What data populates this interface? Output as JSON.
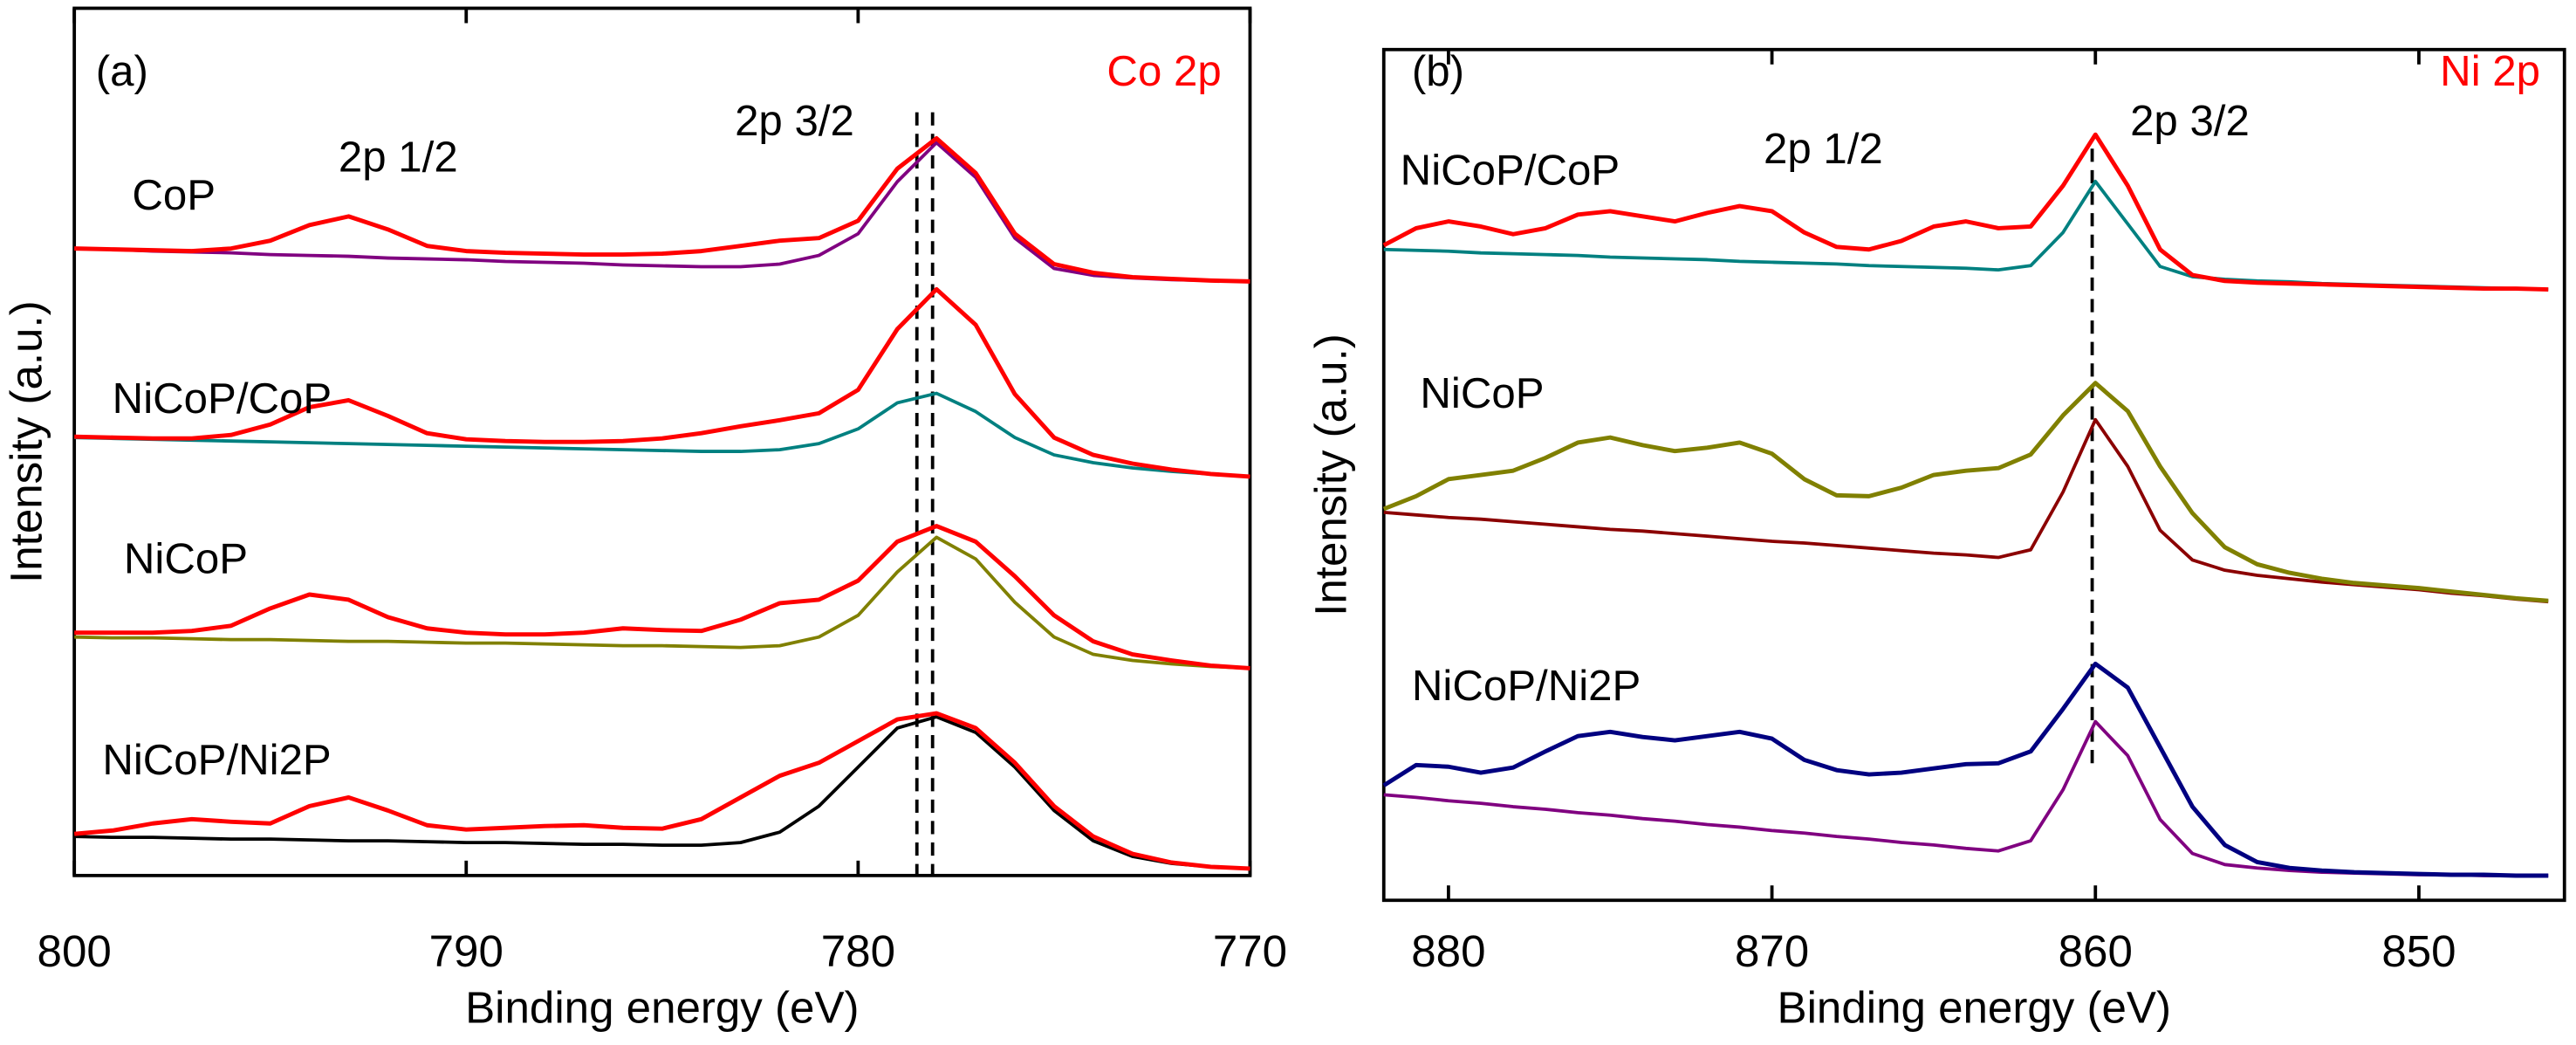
{
  "chart_data": [
    {
      "type": "line",
      "panel_label": "(a)",
      "title": "Co 2p",
      "title_color": "#ff0000",
      "annotations": [
        "2p 1/2",
        "2p 3/2"
      ],
      "x_label": "Binding energy (eV)",
      "y_label": "Intensity (a.u.)",
      "x": [
        800,
        799,
        798,
        797,
        796,
        795,
        794,
        793,
        792,
        791,
        790,
        789,
        788,
        787,
        786,
        785,
        784,
        783,
        782,
        781,
        780,
        779,
        778,
        777,
        776,
        775,
        774,
        773,
        772,
        771,
        770
      ],
      "xlim": [
        800,
        770
      ],
      "xticks": [
        800,
        790,
        780,
        770
      ],
      "ylim": [
        0,
        100
      ],
      "reference_lines": [
        778.1,
        778.5
      ],
      "series": [
        {
          "color": "#800080",
          "values": [
            72.3,
            72.2,
            72.0,
            71.9,
            71.8,
            71.6,
            71.5,
            71.4,
            71.2,
            71.1,
            71.0,
            70.8,
            70.7,
            70.6,
            70.4,
            70.3,
            70.2,
            70.2,
            70.5,
            71.5,
            74.0,
            80.0,
            84.5,
            80.5,
            73.5,
            70.0,
            69.2,
            68.9,
            68.7,
            68.6,
            68.5
          ]
        },
        {
          "name": "CoP",
          "color": "#ff0000",
          "values": [
            72.3,
            72.2,
            72.1,
            72.0,
            72.3,
            73.2,
            75.0,
            76.0,
            74.5,
            72.6,
            72.0,
            71.8,
            71.7,
            71.6,
            71.6,
            71.7,
            72.0,
            72.6,
            73.2,
            73.5,
            75.5,
            81.5,
            85.0,
            81.0,
            74.0,
            70.5,
            69.5,
            69.0,
            68.8,
            68.6,
            68.5
          ]
        },
        {
          "color": "#008080",
          "values": [
            50.5,
            50.4,
            50.3,
            50.2,
            50.1,
            50.0,
            49.9,
            49.8,
            49.7,
            49.6,
            49.5,
            49.4,
            49.3,
            49.2,
            49.1,
            49.0,
            48.9,
            48.9,
            49.1,
            49.8,
            51.5,
            54.5,
            55.6,
            53.5,
            50.5,
            48.5,
            47.6,
            47.0,
            46.6,
            46.3,
            46.0
          ]
        },
        {
          "name": "NiCoP/CoP",
          "color": "#ff0000",
          "values": [
            50.6,
            50.5,
            50.4,
            50.4,
            50.8,
            52.0,
            54.0,
            54.8,
            53.0,
            51.0,
            50.3,
            50.1,
            50.0,
            50.0,
            50.1,
            50.4,
            51.0,
            51.8,
            52.5,
            53.3,
            56.0,
            63.0,
            67.6,
            63.5,
            55.5,
            50.5,
            48.5,
            47.5,
            46.8,
            46.3,
            46.0
          ]
        },
        {
          "color": "#808000",
          "values": [
            27.5,
            27.4,
            27.4,
            27.3,
            27.2,
            27.2,
            27.1,
            27.0,
            27.0,
            26.9,
            26.8,
            26.8,
            26.7,
            26.6,
            26.5,
            26.5,
            26.4,
            26.3,
            26.5,
            27.5,
            30.0,
            35.0,
            39.0,
            36.5,
            31.5,
            27.5,
            25.5,
            24.8,
            24.4,
            24.1,
            23.9
          ]
        },
        {
          "name": "NiCoP",
          "color": "#ff0000",
          "values": [
            28.0,
            28.0,
            28.0,
            28.2,
            28.8,
            30.8,
            32.4,
            31.8,
            29.8,
            28.5,
            28.0,
            27.8,
            27.8,
            28.0,
            28.5,
            28.3,
            28.2,
            29.5,
            31.4,
            31.8,
            34.0,
            38.5,
            40.3,
            38.5,
            34.5,
            30.0,
            27.0,
            25.5,
            24.8,
            24.2,
            23.9
          ]
        },
        {
          "color": "#000000",
          "values": [
            4.5,
            4.4,
            4.4,
            4.3,
            4.2,
            4.2,
            4.1,
            4.0,
            4.0,
            3.9,
            3.8,
            3.8,
            3.7,
            3.6,
            3.6,
            3.5,
            3.5,
            3.8,
            5.0,
            8.0,
            12.5,
            17.0,
            18.3,
            16.5,
            12.5,
            7.5,
            4.0,
            2.2,
            1.4,
            1.0,
            0.8
          ]
        },
        {
          "name": "NiCoP/Ni2P",
          "color": "#ff0000",
          "values": [
            4.8,
            5.2,
            6.0,
            6.5,
            6.2,
            6.0,
            8.0,
            9.0,
            7.5,
            5.8,
            5.3,
            5.5,
            5.7,
            5.8,
            5.5,
            5.4,
            6.5,
            9.0,
            11.5,
            13.0,
            15.5,
            18.0,
            18.7,
            17.0,
            13.0,
            8.0,
            4.5,
            2.5,
            1.5,
            1.0,
            0.8
          ]
        }
      ]
    },
    {
      "type": "line",
      "panel_label": "(b)",
      "title": "Ni 2p",
      "title_color": "#ff0000",
      "annotations": [
        "2p 1/2",
        "2p 3/2"
      ],
      "x_label": "Binding energy (eV)",
      "y_label": "Intensity (a.u.)",
      "x": [
        882,
        881,
        880,
        879,
        878,
        877,
        876,
        875,
        874,
        873,
        872,
        871,
        870,
        869,
        868,
        867,
        866,
        865,
        864,
        863,
        862,
        861,
        860,
        859,
        858,
        857,
        856,
        855,
        854,
        853,
        852,
        851,
        850,
        849,
        848,
        847,
        846
      ],
      "xlim": [
        882,
        845.5
      ],
      "xticks": [
        880,
        870,
        860,
        850
      ],
      "ylim": [
        0,
        100
      ],
      "reference_lines": [
        860.1
      ],
      "series": [
        {
          "color": "#008080",
          "values": [
            76.5,
            76.4,
            76.3,
            76.1,
            76.0,
            75.9,
            75.8,
            75.6,
            75.5,
            75.4,
            75.3,
            75.1,
            75.0,
            74.9,
            74.8,
            74.6,
            74.5,
            74.4,
            74.3,
            74.1,
            74.6,
            78.5,
            84.5,
            79.5,
            74.5,
            73.3,
            73.0,
            72.8,
            72.7,
            72.5,
            72.4,
            72.3,
            72.2,
            72.1,
            72.0,
            71.9,
            71.8
          ]
        },
        {
          "name": "NiCoP/CoP",
          "color": "#ff0000",
          "values": [
            77.0,
            79.0,
            79.8,
            79.2,
            78.3,
            79.0,
            80.6,
            81.0,
            80.4,
            79.8,
            80.8,
            81.6,
            81.0,
            78.5,
            76.8,
            76.5,
            77.5,
            79.2,
            79.8,
            79.0,
            79.2,
            84.0,
            90.0,
            84.0,
            76.5,
            73.5,
            72.8,
            72.6,
            72.5,
            72.4,
            72.3,
            72.2,
            72.1,
            72.0,
            71.9,
            71.9,
            71.8
          ]
        },
        {
          "color": "#8b0000",
          "values": [
            45.6,
            45.3,
            45.0,
            44.8,
            44.5,
            44.2,
            43.9,
            43.6,
            43.4,
            43.1,
            42.8,
            42.5,
            42.2,
            42.0,
            41.7,
            41.4,
            41.1,
            40.8,
            40.6,
            40.3,
            41.2,
            48.0,
            56.5,
            51.0,
            43.5,
            40.0,
            38.8,
            38.2,
            37.8,
            37.4,
            37.1,
            36.8,
            36.5,
            36.1,
            35.8,
            35.4,
            35.1
          ]
        },
        {
          "name": "NiCoP",
          "color": "#808000",
          "values": [
            46.0,
            47.5,
            49.5,
            50.0,
            50.5,
            52.0,
            53.8,
            54.4,
            53.5,
            52.8,
            53.2,
            53.8,
            52.5,
            49.5,
            47.6,
            47.5,
            48.5,
            50.0,
            50.5,
            50.8,
            52.4,
            57.0,
            60.8,
            57.5,
            51.0,
            45.5,
            41.5,
            39.5,
            38.5,
            37.8,
            37.3,
            37.0,
            36.7,
            36.3,
            35.9,
            35.5,
            35.2
          ]
        },
        {
          "color": "#800080",
          "values": [
            12.4,
            12.1,
            11.7,
            11.4,
            11.0,
            10.7,
            10.3,
            10.0,
            9.6,
            9.3,
            8.9,
            8.6,
            8.2,
            7.9,
            7.5,
            7.2,
            6.8,
            6.5,
            6.1,
            5.8,
            7.0,
            13.0,
            21.0,
            17.0,
            9.5,
            5.5,
            4.2,
            3.8,
            3.5,
            3.3,
            3.2,
            3.1,
            3.0,
            3.0,
            2.9,
            2.9,
            2.9
          ]
        },
        {
          "name": "NiCoP/Ni2P",
          "color": "#000080",
          "values": [
            13.5,
            15.9,
            15.7,
            15.0,
            15.6,
            17.5,
            19.3,
            19.8,
            19.2,
            18.8,
            19.3,
            19.8,
            19.0,
            16.5,
            15.3,
            14.8,
            15.0,
            15.5,
            16.0,
            16.1,
            17.5,
            22.5,
            27.8,
            25.0,
            18.0,
            11.0,
            6.5,
            4.5,
            3.8,
            3.5,
            3.3,
            3.2,
            3.1,
            3.0,
            3.0,
            2.9,
            2.9
          ]
        }
      ]
    }
  ]
}
